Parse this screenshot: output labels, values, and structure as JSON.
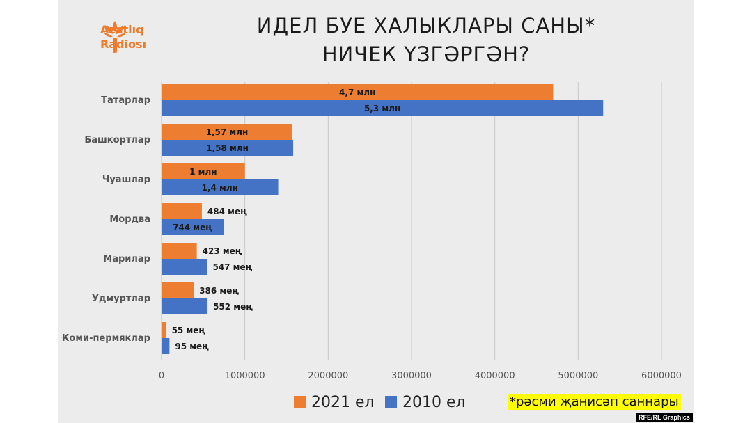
{
  "title_line1": "ИДЕЛ БУЕ ХАЛЫКЛАРЫ САНЫ*",
  "title_line2": "НИЧЕК ҮЗГӘРГӘН?",
  "logo": {
    "line1": "Azatlıq",
    "line2": "Radiosı",
    "icon": "torch-icon"
  },
  "footnote": "*рәсми җанисәп саннары",
  "credit": "RFE/RL Graphics",
  "colors": {
    "orange": "#ed7d31",
    "blue": "#4472c4",
    "grid": "#c8c8c8",
    "panel": "#ececec"
  },
  "chart_data": {
    "type": "bar",
    "orientation": "horizontal",
    "categories": [
      "Татарлар",
      "Башкортлар",
      "Чуашлар",
      "Мордва",
      "Марилар",
      "Удмуртлар",
      "Коми-пермяклар"
    ],
    "series": [
      {
        "name": "2021 ел",
        "color": "#ed7d31",
        "values": [
          4700000,
          1570000,
          1000000,
          484000,
          423000,
          386000,
          55000
        ],
        "labels": [
          "4,7 млн",
          "1,57 млн",
          "1 млн",
          "484 мең",
          "423 мең",
          "386 мең",
          "55 мең"
        ]
      },
      {
        "name": "2010 ел",
        "color": "#4472c4",
        "values": [
          5300000,
          1580000,
          1400000,
          744000,
          547000,
          552000,
          95000
        ],
        "labels": [
          "5,3 млн",
          "1,58 млн",
          "1,4 млн",
          "744 мең",
          "547 мең",
          "552 мең",
          "95 мең"
        ]
      }
    ],
    "xlim": [
      0,
      6000000
    ],
    "xticks": [
      "0",
      "1000000",
      "2000000",
      "3000000",
      "4000000",
      "5000000",
      "6000000"
    ],
    "grid": true,
    "legend": "bottom"
  }
}
